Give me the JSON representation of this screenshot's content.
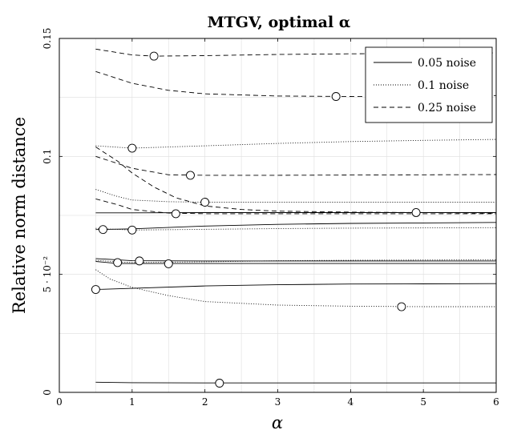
{
  "chart_data": {
    "type": "line",
    "title": "MTGV, optimal α",
    "xlabel": "α",
    "ylabel": "Relative norm distance",
    "xlim": [
      0,
      6
    ],
    "ylim": [
      0,
      0.15
    ],
    "x_ticks": [
      0,
      1,
      2,
      3,
      4,
      5,
      6
    ],
    "x_tick_labels": [
      "0",
      "1",
      "2",
      "3",
      "4",
      "5",
      "6"
    ],
    "y_ticks": [
      0,
      0.05,
      0.1,
      0.15
    ],
    "y_tick_labels": [
      "0",
      "5 · 10⁻²",
      "0.1",
      "0.15"
    ],
    "grid": true,
    "legend_position": "top-right",
    "legend": [
      {
        "label": "0.05 noise",
        "style": "solid"
      },
      {
        "label": "0.1 noise",
        "style": "dotted"
      },
      {
        "label": "0.25 noise",
        "style": "dashed"
      }
    ],
    "series": [
      {
        "style": "solid",
        "x": [
          0.5,
          1,
          2,
          3,
          4,
          5,
          6
        ],
        "y": [
          0.0043,
          0.0041,
          0.004,
          0.004,
          0.004,
          0.004,
          0.004
        ],
        "optimum": [
          2.2,
          0.0039
        ]
      },
      {
        "style": "solid",
        "x": [
          0.5,
          1,
          2,
          3,
          4,
          5,
          6
        ],
        "y": [
          0.0436,
          0.0441,
          0.0451,
          0.0456,
          0.0459,
          0.046,
          0.0461
        ],
        "optimum": [
          0.5,
          0.0436
        ]
      },
      {
        "style": "solid",
        "x": [
          0.5,
          0.8,
          1,
          2,
          3,
          4,
          5,
          6
        ],
        "y": [
          0.0555,
          0.0546,
          0.0546,
          0.0546,
          0.0546,
          0.0546,
          0.0546,
          0.0546
        ],
        "optimum": [
          1.5,
          0.0545
        ]
      },
      {
        "style": "solid",
        "x": [
          0.5,
          1,
          2,
          3,
          4,
          5,
          6
        ],
        "y": [
          0.0567,
          0.0558,
          0.0557,
          0.0557,
          0.0557,
          0.0557,
          0.0557
        ],
        "optimum": [
          1.1,
          0.0557
        ]
      },
      {
        "style": "solid",
        "x": [
          0.5,
          1,
          2,
          3,
          4,
          5,
          6
        ],
        "y": [
          0.069,
          0.0693,
          0.0705,
          0.0712,
          0.0716,
          0.0718,
          0.072
        ],
        "optimum": [
          0.6,
          0.069
        ]
      },
      {
        "style": "solid",
        "x": [
          0.5,
          1,
          2,
          3,
          4,
          5,
          6
        ],
        "y": [
          0.0761,
          0.0761,
          0.0762,
          0.0762,
          0.0762,
          0.0762,
          0.0762
        ],
        "optimum": [
          4.9,
          0.0762
        ]
      },
      {
        "style": "dotted",
        "x": [
          0.5,
          0.7,
          1,
          1.5,
          2,
          3,
          4,
          5,
          6
        ],
        "y": [
          0.052,
          0.048,
          0.0445,
          0.041,
          0.0385,
          0.037,
          0.0365,
          0.0363,
          0.0363
        ],
        "optimum": [
          4.7,
          0.0363
        ]
      },
      {
        "style": "dotted",
        "x": [
          0.5,
          0.8,
          1,
          2,
          3,
          4,
          5,
          6
        ],
        "y": [
          0.056,
          0.0553,
          0.055,
          0.0553,
          0.0558,
          0.056,
          0.0561,
          0.0562
        ],
        "optimum": [
          0.8,
          0.055
        ]
      },
      {
        "style": "dotted",
        "x": [
          0.5,
          1,
          2,
          3,
          4,
          5,
          6
        ],
        "y": [
          0.0695,
          0.0688,
          0.0691,
          0.0694,
          0.0696,
          0.0697,
          0.0698
        ],
        "optimum": [
          1.0,
          0.0688
        ]
      },
      {
        "style": "dotted",
        "x": [
          0.5,
          0.8,
          1,
          1.5,
          2,
          3,
          4,
          5,
          6
        ],
        "y": [
          0.086,
          0.083,
          0.0815,
          0.0808,
          0.0806,
          0.0806,
          0.0806,
          0.0806,
          0.0806
        ],
        "optimum": [
          2.0,
          0.0806
        ]
      },
      {
        "style": "dotted",
        "x": [
          0.5,
          1,
          2,
          3,
          4,
          5,
          6
        ],
        "y": [
          0.1045,
          0.1035,
          0.1045,
          0.1055,
          0.1063,
          0.1068,
          0.1072
        ],
        "optimum": [
          1.0,
          0.1035
        ]
      },
      {
        "style": "dashed",
        "x": [
          0.5,
          0.8,
          1,
          1.5,
          2,
          3,
          4,
          5,
          6
        ],
        "y": [
          0.082,
          0.0795,
          0.0775,
          0.076,
          0.0757,
          0.0757,
          0.0757,
          0.0757,
          0.0757
        ],
        "optimum": [
          1.6,
          0.0757
        ]
      },
      {
        "style": "dashed",
        "x": [
          0.5,
          0.8,
          1,
          1.3,
          1.6,
          2,
          2.5,
          3,
          4,
          5,
          6
        ],
        "y": [
          0.104,
          0.098,
          0.093,
          0.087,
          0.0825,
          0.079,
          0.0775,
          0.0768,
          0.0764,
          0.0762,
          0.076
        ],
        "optimum": null
      },
      {
        "style": "dashed",
        "x": [
          0.5,
          1,
          1.5,
          2,
          3,
          4,
          5,
          6
        ],
        "y": [
          0.1,
          0.095,
          0.0922,
          0.092,
          0.092,
          0.0921,
          0.0922,
          0.0923
        ],
        "optimum": [
          1.8,
          0.092
        ]
      },
      {
        "style": "dashed",
        "x": [
          0.5,
          1,
          1.5,
          2,
          3,
          4,
          5,
          6
        ],
        "y": [
          0.136,
          0.131,
          0.128,
          0.1265,
          0.1256,
          0.1254,
          0.1256,
          0.1258
        ],
        "optimum": [
          3.8,
          0.1254
        ]
      },
      {
        "style": "dashed",
        "x": [
          0.5,
          1,
          1.3,
          2,
          3,
          4,
          5,
          6
        ],
        "y": [
          0.1455,
          0.143,
          0.1425,
          0.1427,
          0.1432,
          0.1435,
          0.1437,
          0.1439
        ],
        "optimum": [
          1.3,
          0.1425
        ]
      }
    ]
  }
}
